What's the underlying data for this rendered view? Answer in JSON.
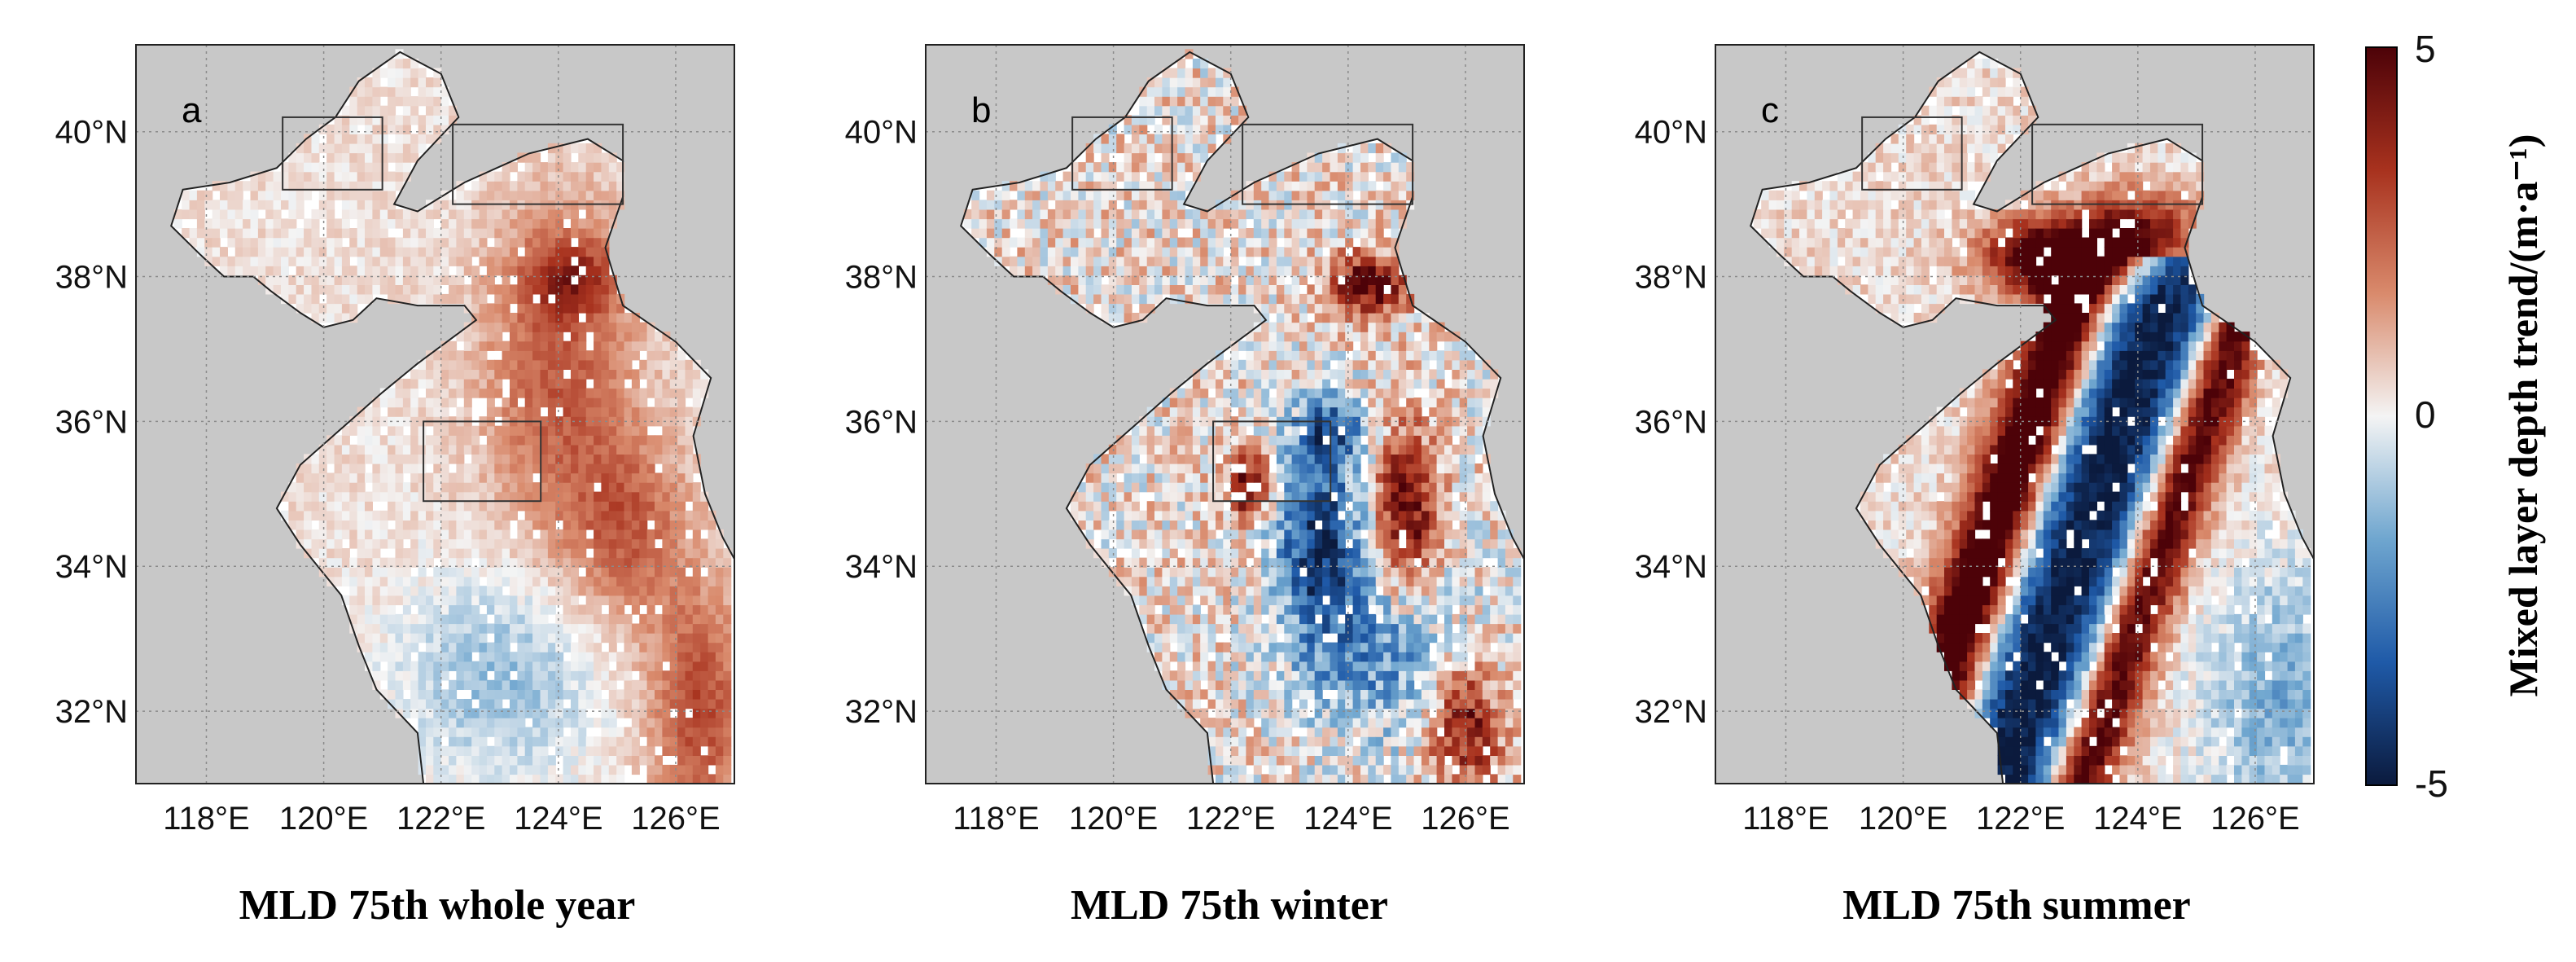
{
  "panels": [
    {
      "letter": "a",
      "title": "MLD 75th whole year",
      "mode": "year"
    },
    {
      "letter": "b",
      "title": "MLD 75th winter",
      "mode": "winter"
    },
    {
      "letter": "c",
      "title": "MLD 75th summer",
      "mode": "summer"
    }
  ],
  "axes": {
    "lon_range": [
      116.8,
      127.0
    ],
    "lat_range": [
      31.0,
      41.2
    ],
    "x_ticks": [
      {
        "value": 118,
        "label": "118°E"
      },
      {
        "value": 120,
        "label": "120°E"
      },
      {
        "value": 122,
        "label": "122°E"
      },
      {
        "value": 124,
        "label": "124°E"
      },
      {
        "value": 126,
        "label": "126°E"
      }
    ],
    "y_ticks": [
      {
        "value": 32,
        "label": "32°N"
      },
      {
        "value": 34,
        "label": "34°N"
      },
      {
        "value": 36,
        "label": "36°N"
      },
      {
        "value": 38,
        "label": "38°N"
      },
      {
        "value": 40,
        "label": "40°N"
      }
    ],
    "grid": true
  },
  "colorbar": {
    "min": -5,
    "max": 5,
    "ticks": [
      {
        "value": 5,
        "label": "5"
      },
      {
        "value": 0,
        "label": "0"
      },
      {
        "value": -5,
        "label": "-5"
      }
    ],
    "label": "Mixed layer depth trend/(m·a⁻¹)",
    "colors": [
      "#0b1a3d",
      "#1f5aa8",
      "#6fa6cf",
      "#f4f4f4",
      "#d98a6c",
      "#a8321e",
      "#4d0208"
    ]
  },
  "colors": {
    "land": "#c8c8c8",
    "background": "#ffffff",
    "grid": "#8a8a8a"
  }
}
